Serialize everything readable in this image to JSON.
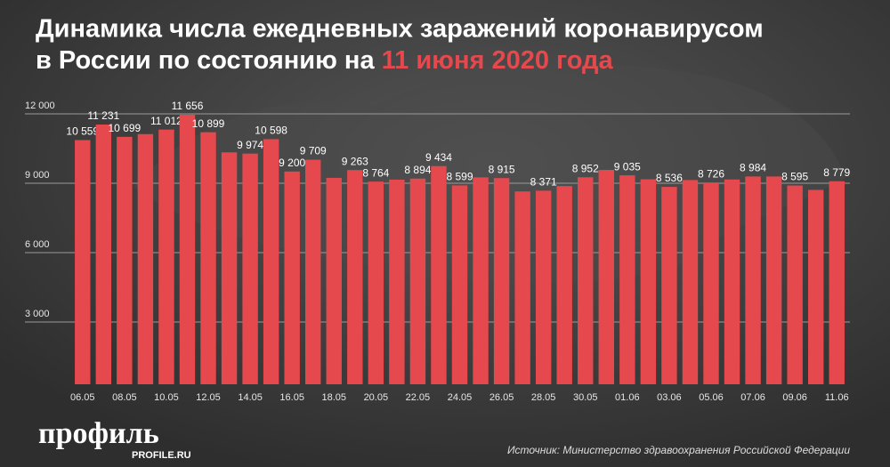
{
  "chart_data": {
    "type": "bar",
    "title": {
      "line1": "Динамика числа ежедневных заражений коронавирусом",
      "line2": "в России по состоянию на",
      "highlight": "11 июня 2020 года"
    },
    "categories": [
      "06.05",
      null,
      "08.05",
      null,
      "10.05",
      null,
      "12.05",
      null,
      "14.05",
      null,
      "16.05",
      null,
      "18.05",
      null,
      "20.05",
      null,
      "22.05",
      null,
      "24.05",
      null,
      "26.05",
      null,
      "28.05",
      null,
      "30.05",
      null,
      "01.06",
      null,
      "03.06",
      null,
      "05.06",
      null,
      "07.06",
      null,
      "09.06",
      null,
      "11.06"
    ],
    "values": [
      10559,
      11231,
      10699,
      10817,
      11012,
      11656,
      10899,
      10028,
      9974,
      10598,
      9200,
      9709,
      8926,
      9263,
      8764,
      8849,
      8894,
      9434,
      8599,
      8946,
      8915,
      8338,
      8371,
      8572,
      8952,
      9268,
      9035,
      8863,
      8536,
      8831,
      8726,
      8855,
      8984,
      8985,
      8595,
      8404,
      8779
    ],
    "value_labels": [
      "10 559",
      "11 231",
      "10 699",
      null,
      "11 012",
      "11 656",
      "10 899",
      null,
      "9 974",
      "10 598",
      "9 200",
      "9 709",
      null,
      "9 263",
      "8 764",
      null,
      "8 894",
      "9 434",
      "8 599",
      null,
      "8 915",
      null,
      "8 371",
      null,
      "8 952",
      null,
      "9 035",
      null,
      "8 536",
      null,
      "8 726",
      null,
      "8 984",
      null,
      "8 595",
      null,
      "8 779"
    ],
    "color": "#e5484d",
    "highlight_color": "#e5484d",
    "ylim": [
      0,
      12000
    ],
    "yticks": [
      {
        "value": 3000,
        "label": "3 000"
      },
      {
        "value": 6000,
        "label": "6 000"
      },
      {
        "value": 9000,
        "label": "9 000"
      },
      {
        "value": 12000,
        "label": "12 000"
      }
    ],
    "grid": true,
    "source": "Источник: Министерство здравоохранения Российской Федерации",
    "logo": "профиль",
    "logo_url": "PROFILE.RU"
  }
}
